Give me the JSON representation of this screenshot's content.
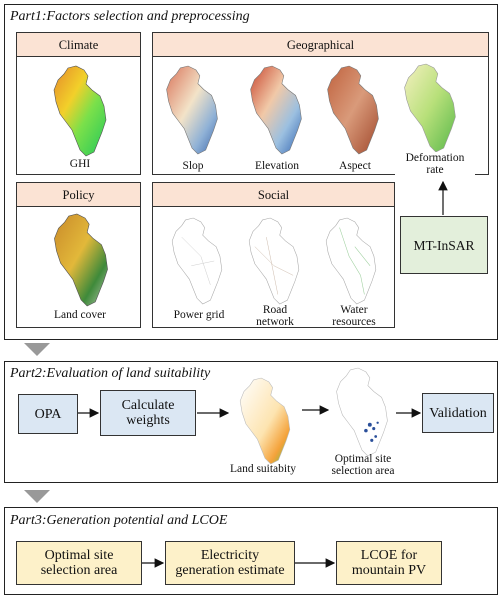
{
  "part1": {
    "title": "Part1:Factors selection and preprocessing",
    "climate": {
      "header": "Climate",
      "maps": [
        "GHI"
      ]
    },
    "geographical": {
      "header": "Geographical",
      "maps": [
        "Slop",
        "Elevation",
        "Aspect",
        "Deformation\nrate"
      ]
    },
    "policy": {
      "header": "Policy",
      "maps": [
        "Land cover"
      ]
    },
    "social": {
      "header": "Social",
      "maps": [
        "Power grid",
        "Road\nnetwork",
        "Water\nresources"
      ]
    },
    "mtinsar": "MT-InSAR"
  },
  "part2": {
    "title": "Part2:Evaluation of land suitability",
    "opa": "OPA",
    "calc": "Calculate\nweights",
    "land_suitability": "Land suitabity",
    "optimal_area": "Optimal site\nselection area",
    "validation": "Validation"
  },
  "part3": {
    "title": "Part3:Generation potential and LCOE",
    "optimal": "Optimal site\nselection area",
    "electricity": "Electricity\ngeneration estimate",
    "lcoe": "LCOE for\nmountain PV"
  }
}
